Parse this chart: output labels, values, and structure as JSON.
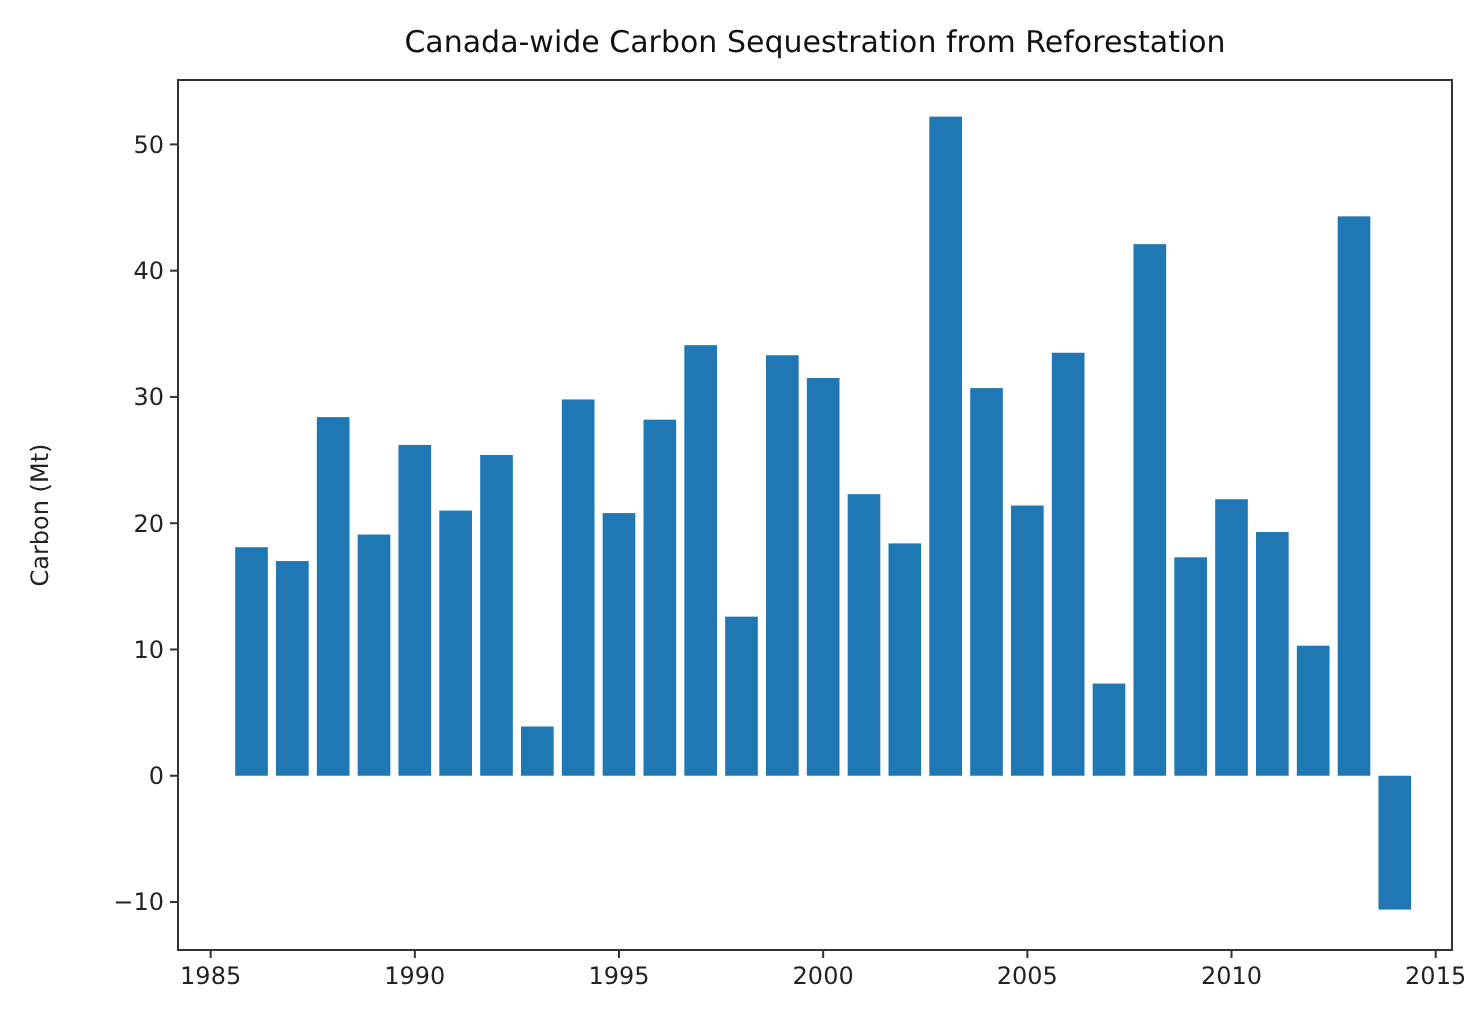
{
  "chart_data": {
    "type": "bar",
    "title": "Canada-wide Carbon Sequestration from Reforestation",
    "ylabel": "Carbon (Mt)",
    "x": [
      1986,
      1987,
      1988,
      1989,
      1990,
      1991,
      1992,
      1993,
      1994,
      1995,
      1996,
      1997,
      1998,
      1999,
      2000,
      2001,
      2002,
      2003,
      2004,
      2005,
      2006,
      2007,
      2008,
      2009,
      2010,
      2011,
      2012,
      2013,
      2014
    ],
    "values": [
      18.1,
      17.0,
      28.4,
      19.1,
      26.2,
      21.0,
      25.4,
      3.9,
      29.8,
      20.8,
      28.2,
      34.1,
      12.6,
      33.3,
      31.5,
      22.3,
      18.4,
      52.2,
      30.7,
      21.4,
      33.5,
      7.3,
      42.1,
      17.3,
      21.9,
      19.3,
      10.3,
      44.3,
      -10.6
    ],
    "color": "#1f77b4",
    "xlim": [
      1984.2,
      2015.4
    ],
    "xticks": [
      1985,
      1990,
      1995,
      2000,
      2005,
      2010,
      2015
    ],
    "ylim": [
      -13.8,
      55.1
    ],
    "yticks": [
      -10,
      0,
      10,
      20,
      30,
      40,
      50
    ]
  }
}
